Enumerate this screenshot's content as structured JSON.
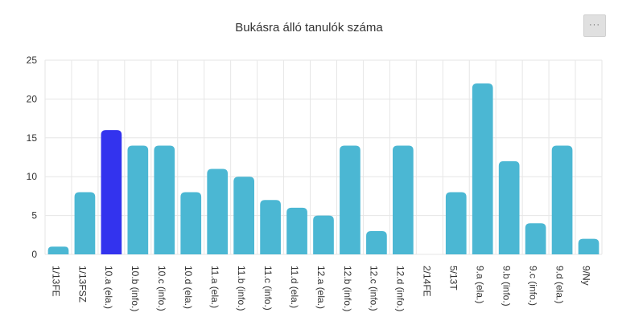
{
  "title": "Bukásra álló tanulók száma",
  "menu": {
    "label": "···"
  },
  "chart_data": {
    "type": "bar",
    "title": "Bukásra álló tanulók száma",
    "xlabel": "",
    "ylabel": "",
    "ylim": [
      0,
      25
    ],
    "yticks": [
      0,
      5,
      10,
      15,
      20,
      25
    ],
    "grid": true,
    "categories": [
      "1/13FE",
      "1/13FSZ",
      "10.a (ela.)",
      "10.b (info.)",
      "10.c (info.)",
      "10.d (ela.)",
      "11.a (ela.)",
      "11.b (info.)",
      "11.c (info.)",
      "11.d (ela.)",
      "12.a (ela.)",
      "12.b (info.)",
      "12.c (info.)",
      "12.d (info.)",
      "2/14FE",
      "5/13T",
      "9.a (ela.)",
      "9.b (info.)",
      "9.c (info.)",
      "9.d (ela.)",
      "9/Ny"
    ],
    "values": [
      1,
      8,
      16,
      14,
      14,
      8,
      11,
      10,
      7,
      6,
      5,
      14,
      3,
      14,
      0,
      8,
      22,
      12,
      4,
      14,
      2
    ],
    "colors": {
      "bar": "#4bb7d3",
      "highlight": "#3333ee"
    },
    "highlight_index": 2
  }
}
